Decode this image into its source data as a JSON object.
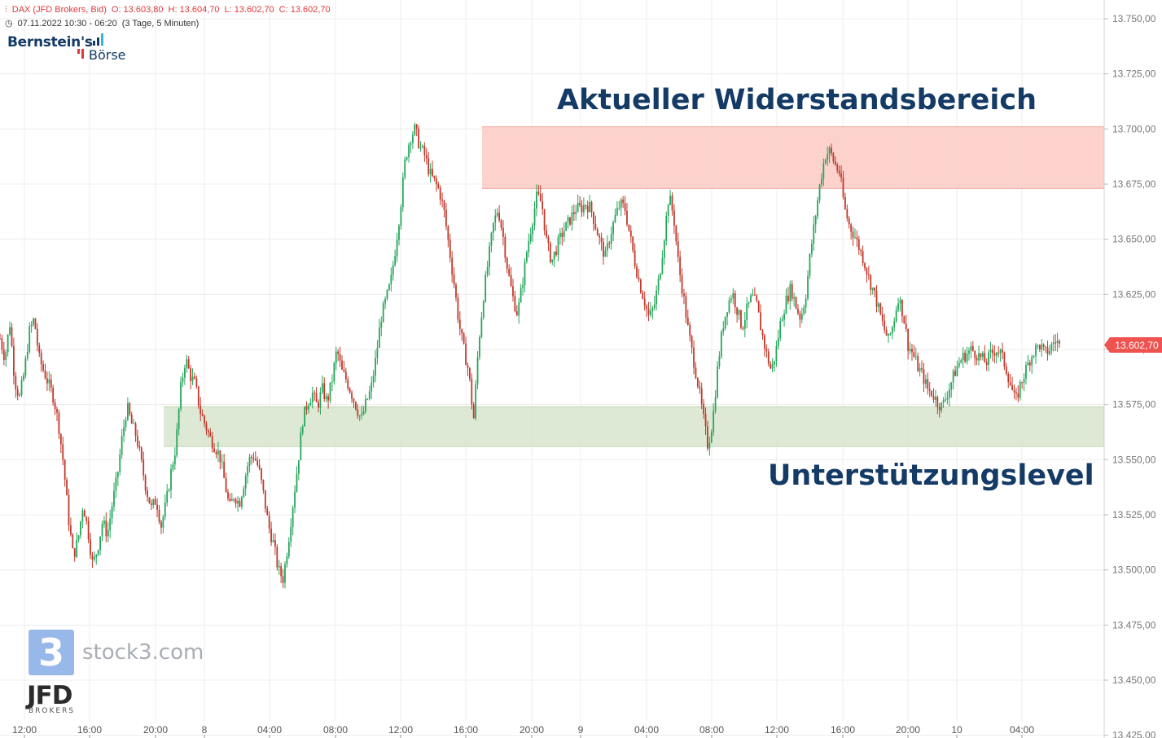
{
  "header": {
    "instrument": "DAX (JFD Brokers, Bid)",
    "open": "O: 13.603,80",
    "high": "H: 13.604,70",
    "low": "L: 13.602,70",
    "close": "C: 13.602,70",
    "range": "07.11.2022 10:30 - 06:20",
    "interval": "(3 Tage, 5 Minuten)"
  },
  "logo": {
    "line1": "Bernstein's",
    "line2": "Börse"
  },
  "watermark": {
    "digit": "3",
    "text": "stock3.com",
    "broker": "JFD",
    "broker_sub": "BROKERS"
  },
  "labels": {
    "resistance": "Aktueller Widerstandsbereich",
    "support": "Unterstützungslevel"
  },
  "price_tag": "13.602,70",
  "colors": {
    "up": "#26a65b",
    "down": "#c0392b",
    "resistance_zone": "#fdd0ca",
    "support_zone": "#dbe8d2",
    "label_text": "#143a66",
    "price_tag": "#ef5350"
  },
  "chart_data": {
    "type": "candlestick",
    "y_ticks": [
      "13.750,00",
      "13.725,00",
      "13.700,00",
      "13.675,00",
      "13.650,00",
      "13.625,00",
      "13.600,00",
      "13.575,00",
      "13.550,00",
      "13.525,00",
      "13.500,00",
      "13.475,00",
      "13.450,00",
      "13.425,00"
    ],
    "y_tick_values": [
      13750,
      13725,
      13700,
      13675,
      13650,
      13625,
      13600,
      13575,
      13550,
      13525,
      13500,
      13475,
      13450,
      13425
    ],
    "ylim": [
      13425,
      13756
    ],
    "x_ticks": [
      "12:00",
      "16:00",
      "20:00",
      "8",
      "04:00",
      "08:00",
      "12:00",
      "16:00",
      "20:00",
      "9",
      "04:00",
      "08:00",
      "12:00",
      "16:00",
      "20:00",
      "10",
      "04:00"
    ],
    "zones": [
      {
        "name": "resistance",
        "from": 13673,
        "to": 13701
      },
      {
        "name": "support",
        "from": 13556,
        "to": 13574
      }
    ],
    "last_price": 13602.7,
    "path": [
      13605,
      13596,
      13612,
      13586,
      13578,
      13590,
      13608,
      13614,
      13596,
      13590,
      13584,
      13578,
      13566,
      13548,
      13524,
      13506,
      13514,
      13530,
      13518,
      13502,
      13510,
      13522,
      13516,
      13530,
      13542,
      13560,
      13574,
      13566,
      13560,
      13548,
      13536,
      13528,
      13532,
      13520,
      13530,
      13544,
      13556,
      13582,
      13596,
      13588,
      13584,
      13572,
      13566,
      13560,
      13556,
      13552,
      13540,
      13528,
      13534,
      13530,
      13540,
      13550,
      13552,
      13546,
      13534,
      13520,
      13512,
      13500,
      13496,
      13512,
      13530,
      13548,
      13568,
      13576,
      13580,
      13574,
      13582,
      13576,
      13586,
      13600,
      13590,
      13586,
      13580,
      13574,
      13568,
      13576,
      13582,
      13596,
      13614,
      13622,
      13630,
      13646,
      13664,
      13686,
      13696,
      13700,
      13692,
      13688,
      13680,
      13676,
      13672,
      13662,
      13646,
      13630,
      13612,
      13600,
      13590,
      13568,
      13602,
      13624,
      13640,
      13656,
      13664,
      13652,
      13636,
      13624,
      13616,
      13630,
      13646,
      13658,
      13670,
      13666,
      13648,
      13640,
      13646,
      13652,
      13656,
      13660,
      13664,
      13664,
      13666,
      13664,
      13656,
      13648,
      13642,
      13652,
      13660,
      13666,
      13664,
      13652,
      13640,
      13630,
      13622,
      13614,
      13620,
      13632,
      13650,
      13670,
      13660,
      13638,
      13624,
      13608,
      13596,
      13584,
      13570,
      13556,
      13568,
      13592,
      13610,
      13620,
      13626,
      13618,
      13610,
      13618,
      13624,
      13620,
      13608,
      13598,
      13590,
      13600,
      13614,
      13622,
      13628,
      13620,
      13614,
      13624,
      13644,
      13660,
      13676,
      13688,
      13690,
      13684,
      13680,
      13664,
      13656,
      13652,
      13646,
      13640,
      13632,
      13626,
      13618,
      13610,
      13604,
      13612,
      13624,
      13616,
      13602,
      13598,
      13592,
      13588,
      13582,
      13580,
      13576,
      13574,
      13580,
      13586,
      13592,
      13596,
      13598,
      13600,
      13598,
      13596,
      13594,
      13598,
      13600,
      13598,
      13592,
      13584,
      13576,
      13584,
      13590,
      13596,
      13600,
      13602,
      13598,
      13600,
      13604,
      13602.7
    ]
  }
}
